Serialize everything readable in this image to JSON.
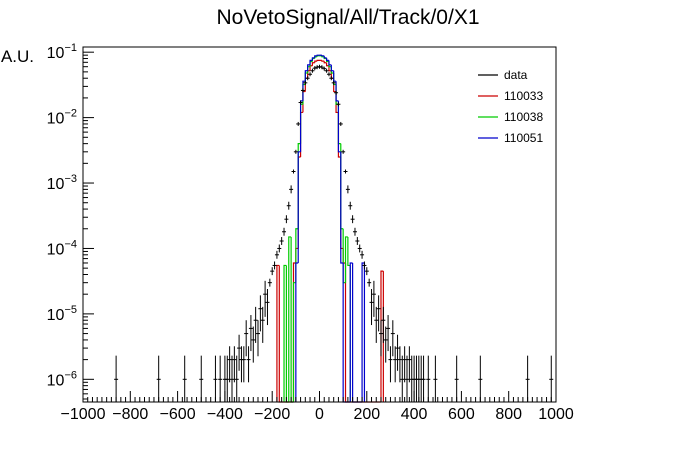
{
  "chart_data": {
    "type": "histogram",
    "title": "NoVetoSignal/All/Track/0/X1",
    "xlabel": "",
    "ylabel": "A.U.",
    "xlim": [
      -1000,
      1000
    ],
    "ylim": [
      4.5e-07,
      0.12
    ],
    "yscale": "log",
    "x_ticks": [
      "−1000",
      "−800",
      "−600",
      "−400",
      "−200",
      "0",
      "200",
      "400",
      "600",
      "800",
      "1000"
    ],
    "y_ticks": [
      {
        "value": 1e-06,
        "base": "10",
        "exp": "−6"
      },
      {
        "value": 1e-05,
        "base": "10",
        "exp": "−5"
      },
      {
        "value": 0.0001,
        "base": "10",
        "exp": "−4"
      },
      {
        "value": 0.001,
        "base": "10",
        "exp": "−3"
      },
      {
        "value": 0.01,
        "base": "10",
        "exp": "−2"
      },
      {
        "value": 0.1,
        "base": "10",
        "exp": "−1"
      }
    ],
    "legend_position": "top-right",
    "series": [
      {
        "name": "data",
        "style": "points",
        "color": "#000000",
        "x": [
          -860,
          -680,
          -570,
          -500,
          -440,
          -420,
          -400,
          -390,
          -380,
          -370,
          -360,
          -350,
          -340,
          -330,
          -320,
          -310,
          -300,
          -290,
          -280,
          -270,
          -260,
          -250,
          -240,
          -230,
          -220,
          -210,
          -200,
          -190,
          -180,
          -170,
          -160,
          -150,
          -140,
          -130,
          -120,
          -110,
          -100,
          -90,
          -80,
          -70,
          -60,
          -50,
          -40,
          -30,
          -20,
          -10,
          0,
          10,
          20,
          30,
          40,
          50,
          60,
          70,
          80,
          90,
          100,
          110,
          120,
          130,
          140,
          150,
          160,
          170,
          180,
          190,
          200,
          210,
          220,
          230,
          240,
          250,
          260,
          270,
          280,
          290,
          300,
          310,
          320,
          330,
          340,
          350,
          360,
          370,
          380,
          390,
          400,
          410,
          420,
          430,
          440,
          460,
          490,
          580,
          680,
          880,
          980
        ],
        "y": [
          1e-06,
          1e-06,
          1e-06,
          1e-06,
          1e-06,
          1e-06,
          1e-06,
          1e-06,
          2e-06,
          1e-06,
          2e-06,
          1e-06,
          3e-06,
          2e-06,
          2e-06,
          5e-06,
          2e-06,
          6e-06,
          4e-06,
          8e-06,
          5e-06,
          1.2e-05,
          8e-06,
          2e-05,
          1.5e-05,
          3e-05,
          4.5e-05,
          5.5e-05,
          8e-05,
          0.0001,
          0.00013,
          0.00018,
          0.00028,
          0.00045,
          0.0008,
          0.0015,
          0.003,
          0.008,
          0.017,
          0.026,
          0.034,
          0.04,
          0.046,
          0.052,
          0.057,
          0.059,
          0.06,
          0.059,
          0.056,
          0.052,
          0.046,
          0.04,
          0.034,
          0.024,
          0.016,
          0.008,
          0.003,
          0.0015,
          0.0008,
          0.00045,
          0.00028,
          0.00018,
          0.00013,
          0.0001,
          8e-05,
          5.5e-05,
          4.5e-05,
          3e-05,
          1.5e-05,
          2e-05,
          8e-06,
          1.2e-05,
          5e-06,
          8e-06,
          4e-06,
          6e-06,
          2e-06,
          5e-06,
          2e-06,
          3e-06,
          2e-06,
          1e-06,
          2e-06,
          1e-06,
          2e-06,
          1e-06,
          1e-06,
          1e-06,
          1e-06,
          1e-06,
          1e-06,
          1e-06,
          1e-06,
          1e-06,
          1e-06,
          1e-06,
          1e-06
        ]
      },
      {
        "name": "110033",
        "style": "step",
        "color": "#cc0000",
        "bins": [
          [
            -180,
            -170,
            5.5e-05
          ],
          [
            -170,
            -110,
            0
          ],
          [
            -110,
            -100,
            6e-05
          ],
          [
            -100,
            -90,
            0.0001
          ],
          [
            -90,
            -80,
            0.0025
          ],
          [
            -80,
            -70,
            0.012
          ],
          [
            -70,
            -60,
            0.025
          ],
          [
            -60,
            -50,
            0.04
          ],
          [
            -50,
            -40,
            0.052
          ],
          [
            -40,
            -30,
            0.062
          ],
          [
            -30,
            -20,
            0.069
          ],
          [
            -20,
            -10,
            0.073
          ],
          [
            -10,
            0,
            0.075
          ],
          [
            0,
            10,
            0.075
          ],
          [
            10,
            20,
            0.073
          ],
          [
            20,
            30,
            0.069
          ],
          [
            30,
            40,
            0.062
          ],
          [
            40,
            50,
            0.052
          ],
          [
            50,
            60,
            0.04
          ],
          [
            60,
            70,
            0.025
          ],
          [
            70,
            80,
            0.012
          ],
          [
            80,
            90,
            0.0025
          ],
          [
            90,
            100,
            0.0001
          ],
          [
            100,
            110,
            6e-05
          ],
          [
            110,
            260,
            0
          ],
          [
            260,
            270,
            4.5e-05
          ]
        ]
      },
      {
        "name": "110038",
        "style": "step",
        "color": "#00cc00",
        "bins": [
          [
            -150,
            -140,
            5.5e-05
          ],
          [
            -140,
            -130,
            0
          ],
          [
            -130,
            -120,
            0.00015
          ],
          [
            -120,
            -110,
            0
          ],
          [
            -110,
            -100,
            3e-05
          ],
          [
            -100,
            -90,
            0.0002
          ],
          [
            -90,
            -80,
            0.004
          ],
          [
            -80,
            -70,
            0.016
          ],
          [
            -70,
            -60,
            0.032
          ],
          [
            -60,
            -50,
            0.048
          ],
          [
            -50,
            -40,
            0.06
          ],
          [
            -40,
            -30,
            0.072
          ],
          [
            -30,
            -20,
            0.08
          ],
          [
            -20,
            -10,
            0.085
          ],
          [
            -10,
            0,
            0.088
          ],
          [
            0,
            10,
            0.088
          ],
          [
            10,
            20,
            0.085
          ],
          [
            20,
            30,
            0.08
          ],
          [
            30,
            40,
            0.072
          ],
          [
            40,
            50,
            0.06
          ],
          [
            50,
            60,
            0.048
          ],
          [
            60,
            70,
            0.032
          ],
          [
            70,
            80,
            0.016
          ],
          [
            80,
            90,
            0.004
          ],
          [
            90,
            100,
            0.0002
          ],
          [
            100,
            110,
            3e-05
          ],
          [
            110,
            120,
            0.00015
          ],
          [
            120,
            130,
            5.5e-05
          ]
        ]
      },
      {
        "name": "110051",
        "style": "step",
        "color": "#0000cc",
        "bins": [
          [
            -100,
            -90,
            6e-05
          ],
          [
            -90,
            -80,
            0.003
          ],
          [
            -80,
            -70,
            0.018
          ],
          [
            -70,
            -60,
            0.036
          ],
          [
            -60,
            -50,
            0.052
          ],
          [
            -50,
            -40,
            0.064
          ],
          [
            -40,
            -30,
            0.075
          ],
          [
            -30,
            -20,
            0.082
          ],
          [
            -20,
            -10,
            0.088
          ],
          [
            -10,
            0,
            0.09
          ],
          [
            0,
            10,
            0.09
          ],
          [
            10,
            20,
            0.088
          ],
          [
            20,
            30,
            0.082
          ],
          [
            30,
            40,
            0.075
          ],
          [
            40,
            50,
            0.064
          ],
          [
            50,
            60,
            0.052
          ],
          [
            60,
            70,
            0.036
          ],
          [
            70,
            80,
            0.018
          ],
          [
            80,
            90,
            0.003
          ],
          [
            90,
            100,
            6e-05
          ],
          [
            100,
            130,
            0
          ],
          [
            130,
            140,
            6e-05
          ],
          [
            140,
            180,
            0
          ],
          [
            180,
            190,
            6e-05
          ]
        ]
      }
    ]
  }
}
